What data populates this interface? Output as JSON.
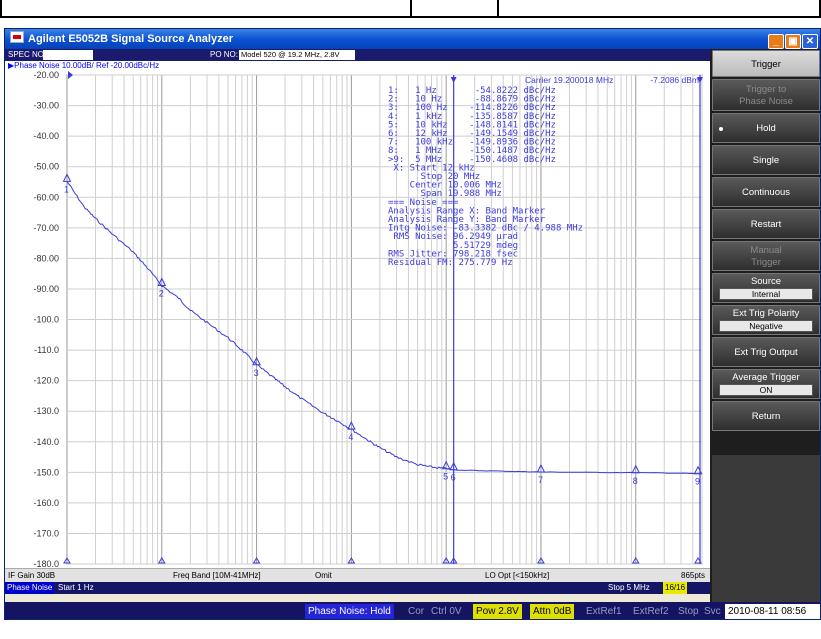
{
  "window": {
    "title": "Agilent E5052B Signal Source Analyzer",
    "buttons": [
      "_",
      "▣",
      "✕"
    ]
  },
  "info": {
    "spec_label": "SPEC NO:",
    "spec_value": "",
    "po_label": "PO NO:",
    "po_value": "Model 520 @ 19.2 MHz, 2.8V"
  },
  "trace_header": "▶Phase Noise 10.00dB/ Ref -20.00dBc/Hz",
  "carrier": {
    "text": "Carrier 19.200018 MHz",
    "power": "-7.2086 dBm"
  },
  "markers_text": [
    "1:   1 Hz       -54.8222 dBc/Hz",
    "2:   10 Hz      -88.8679 dBc/Hz",
    "3:   100 Hz    -114.8226 dBc/Hz",
    "4:   1 kHz     -135.8587 dBc/Hz",
    "5:   10 kHz    -148.8141 dBc/Hz",
    "6:   12 kHz    -149.1549 dBc/Hz",
    "7:   100 kHz   -149.8936 dBc/Hz",
    "8:   1 MHz     -150.1487 dBc/Hz",
    ">9:  5 MHz     -150.4608 dBc/Hz",
    " X: Start 12 kHz",
    "      Stop 20 MHz",
    "    Center 10.006 MHz",
    "      Span 19.988 MHz",
    "=== Noise ===",
    "Analysis Range X: Band Marker",
    "Analysis Range Y: Band Marker",
    "Intg Noise: -83.3382 dBc / 4.988 MHz",
    " RMS Noise: 96.2949 µrad",
    "            5.51729 mdeg",
    "RMS Jitter: 798.218 fsec",
    "Residual FM: 275.779 Hz"
  ],
  "chart_data": {
    "type": "line",
    "title": "Phase Noise 10.00dB/ Ref -20.00dBc/Hz",
    "xlabel": "",
    "ylabel": "",
    "x_scale": "log",
    "xlim": [
      1,
      5000000
    ],
    "ylim": [
      -180,
      -20
    ],
    "y_ticks": [
      "-20.00",
      "-30.00",
      "-40.00",
      "-50.00",
      "-60.00",
      "-70.00",
      "-80.00",
      "-90.00",
      "-100.0",
      "-110.0",
      "-120.0",
      "-130.0",
      "-140.0",
      "-150.0",
      "-160.0",
      "-170.0",
      "-180.0"
    ],
    "grid": true,
    "series": [
      {
        "color": "#3b3bdc",
        "x": [
          1,
          1.5,
          2,
          3,
          5,
          7,
          10,
          15,
          20,
          30,
          50,
          70,
          100,
          150,
          200,
          300,
          500,
          700,
          1000,
          1500,
          2000,
          3000,
          5000,
          7000,
          10000,
          12000,
          20000,
          50000,
          100000,
          300000,
          1000000,
          3000000,
          5000000
        ],
        "y": [
          -54.8,
          -63,
          -67,
          -72,
          -78,
          -83,
          -88.9,
          -93,
          -97,
          -101,
          -106,
          -110,
          -114.8,
          -119,
          -122,
          -126,
          -130.5,
          -133,
          -135.9,
          -139.5,
          -142,
          -145,
          -147.5,
          -148.3,
          -148.8,
          -149.2,
          -149.4,
          -149.7,
          -149.9,
          -150,
          -150.1,
          -150.3,
          -150.5
        ]
      }
    ],
    "markers": [
      {
        "id": "1",
        "x": 1,
        "y": -54.8222
      },
      {
        "id": "2",
        "x": 10,
        "y": -88.8679
      },
      {
        "id": "3",
        "x": 100,
        "y": -114.8226
      },
      {
        "id": "4",
        "x": 1000,
        "y": -135.8587
      },
      {
        "id": "5",
        "x": 10000,
        "y": -148.8141
      },
      {
        "id": "6",
        "x": 12000,
        "y": -149.1549
      },
      {
        "id": "7",
        "x": 100000,
        "y": -149.8936
      },
      {
        "id": "8",
        "x": 1000000,
        "y": -150.1487
      },
      {
        "id": "9",
        "x": 5000000,
        "y": -150.4608
      }
    ],
    "band_range": [
      12000,
      20000000
    ]
  },
  "bottom": {
    "if_gain": "IF Gain 30dB",
    "freq_band": "Freq Band [10M-41MHz]",
    "omit": "Omit",
    "lo_opt": "LO Opt [<150kHz]",
    "points": "865pts",
    "meas": "Phase Noise",
    "start": "Start 1 Hz",
    "stop": "Stop 5 MHz",
    "count": "16/16"
  },
  "status": {
    "state": "Phase Noise: Hold",
    "cor": "Cor",
    "ctrl": "Ctrl  0V",
    "pow": "Pow  2.8V",
    "attn": "Attn 0dB",
    "extref1": "ExtRef1",
    "extref2": "ExtRef2",
    "stop": "Stop",
    "svc": "Svc",
    "datetime": "2010-08-11 08:56"
  },
  "softkeys": {
    "trigger": "Trigger",
    "trigger_to_pn_1": "Trigger to",
    "trigger_to_pn_2": "Phase Noise",
    "hold": "Hold",
    "single": "Single",
    "continuous": "Continuous",
    "restart": "Restart",
    "manual_1": "Manual",
    "manual_2": "Trigger",
    "source": "Source",
    "source_val": "Internal",
    "polarity": "Ext Trig Polarity",
    "polarity_val": "Negative",
    "ext_output": "Ext Trig Output",
    "avg_trigger": "Average Trigger",
    "avg_trigger_val": "ON",
    "return": "Return"
  }
}
